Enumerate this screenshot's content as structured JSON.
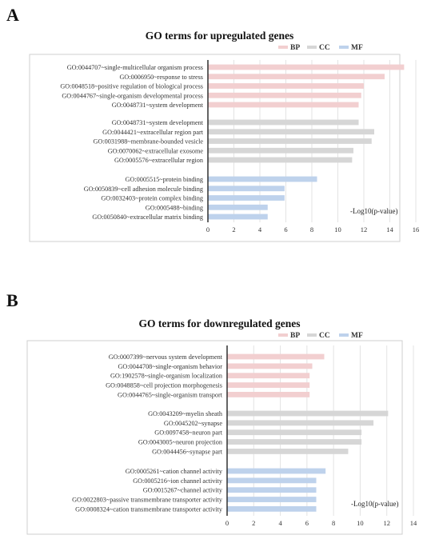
{
  "chart_data": [
    {
      "panel": "A",
      "type": "bar",
      "orientation": "horizontal",
      "title": "GO terms for upregulated genes",
      "value_label": "-Log10(p-value)",
      "xlim": [
        0,
        16
      ],
      "xticks": [
        0,
        2,
        4,
        6,
        8,
        10,
        12,
        14,
        16
      ],
      "grid": "vertical",
      "legend": {
        "placement": "top-right",
        "entries": [
          "BP",
          "CC",
          "MF"
        ]
      },
      "groups": [
        {
          "name": "BP",
          "color": "#f2cfd0",
          "items": [
            {
              "label": "GO:0044707~single-multicellular organism process",
              "value": 15.1
            },
            {
              "label": "GO:0006950~response to stress",
              "value": 13.6
            },
            {
              "label": "GO:0048518~positive regulation of biological process",
              "value": 12.0
            },
            {
              "label": "GO:0044767~single-organism developmental process",
              "value": 11.8
            },
            {
              "label": "GO:0048731~system development",
              "value": 11.6
            }
          ]
        },
        {
          "name": "CC",
          "color": "#d6d6d6",
          "items": [
            {
              "label": "GO:0048731~system development",
              "value": 11.6
            },
            {
              "label": "GO:0044421~extracellular region part",
              "value": 12.8
            },
            {
              "label": "GO:0031988~membrane-bounded vesicle",
              "value": 12.6
            },
            {
              "label": "GO:0070062~extracellular exosome",
              "value": 11.2
            },
            {
              "label": "GO:0005576~extracellular region",
              "value": 11.1
            }
          ]
        },
        {
          "name": "MF",
          "color": "#bed2ec",
          "items": [
            {
              "label": "GO:0005515~protein binding",
              "value": 8.4
            },
            {
              "label": "GO:0050839~cell adhesion molecule binding",
              "value": 5.9
            },
            {
              "label": "GO:0032403~protein complex binding",
              "value": 5.9
            },
            {
              "label": "GO:0005488~binding",
              "value": 4.6
            },
            {
              "label": "GO:0050840~extracellular matrix binding",
              "value": 4.6
            }
          ]
        }
      ]
    },
    {
      "panel": "B",
      "type": "bar",
      "orientation": "horizontal",
      "title": "GO terms for downregulated genes",
      "value_label": "-Log10(p-value)",
      "xlim": [
        0,
        14
      ],
      "xticks": [
        0,
        2,
        4,
        6,
        8,
        10,
        12,
        14
      ],
      "grid": "vertical",
      "legend": {
        "placement": "top-right",
        "entries": [
          "BP",
          "CC",
          "MF"
        ]
      },
      "groups": [
        {
          "name": "BP",
          "color": "#f2cfd0",
          "items": [
            {
              "label": "GO:0007399~nervous system development",
              "value": 7.3
            },
            {
              "label": "GO:0044708~single-organism behavior",
              "value": 6.4
            },
            {
              "label": "GO:1902578~single-organism localization",
              "value": 6.2
            },
            {
              "label": "GO:0048858~cell projection morphogenesis",
              "value": 6.2
            },
            {
              "label": "GO:0044765~single-organism transport",
              "value": 6.2
            }
          ]
        },
        {
          "name": "CC",
          "color": "#d6d6d6",
          "items": [
            {
              "label": "GO:0043209~myelin sheath",
              "value": 12.1
            },
            {
              "label": "GO:0045202~synapse",
              "value": 11.0
            },
            {
              "label": "GO:0097458~neuron part",
              "value": 10.1
            },
            {
              "label": "GO:0043005~neuron projection",
              "value": 10.1
            },
            {
              "label": "GO:0044456~synapse part",
              "value": 9.1
            }
          ]
        },
        {
          "name": "MF",
          "color": "#bed2ec",
          "items": [
            {
              "label": "GO:0005261~cation channel activity",
              "value": 7.4
            },
            {
              "label": "GO:0005216~ion channel activity",
              "value": 6.7
            },
            {
              "label": "GO:0015267~channel activity",
              "value": 6.7
            },
            {
              "label": "GO:0022803~passive transmembrane transporter activity",
              "value": 6.7
            },
            {
              "label": "GO:0008324~cation transmembrane transporter activity",
              "value": 6.7
            }
          ]
        }
      ]
    }
  ],
  "panel_letters": {
    "a": "A",
    "b": "B"
  }
}
